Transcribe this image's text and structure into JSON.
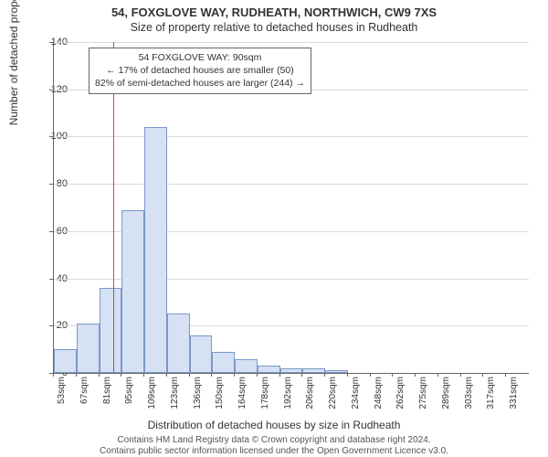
{
  "titles": {
    "line1": "54, FOXGLOVE WAY, RUDHEATH, NORTHWICH, CW9 7XS",
    "line2": "Size of property relative to detached houses in Rudheath"
  },
  "axes": {
    "ylabel": "Number of detached properties",
    "xlabel": "Distribution of detached houses by size in Rudheath",
    "ylim": [
      0,
      140
    ],
    "ytick_step": 20,
    "yticks": [
      0,
      20,
      40,
      60,
      80,
      100,
      120,
      140
    ],
    "grid_color": "#d9d9d9",
    "axis_color": "#666666",
    "tick_fontsize": 11,
    "label_fontsize": 12
  },
  "histogram": {
    "type": "histogram",
    "bar_fill": "#d6e1f4",
    "bar_stroke": "#7a98c9",
    "background_color": "#ffffff",
    "categories": [
      "53sqm",
      "67sqm",
      "81sqm",
      "95sqm",
      "109sqm",
      "123sqm",
      "136sqm",
      "150sqm",
      "164sqm",
      "178sqm",
      "192sqm",
      "206sqm",
      "220sqm",
      "234sqm",
      "248sqm",
      "262sqm",
      "275sqm",
      "289sqm",
      "303sqm",
      "317sqm",
      "331sqm"
    ],
    "values": [
      10,
      21,
      36,
      69,
      104,
      25,
      16,
      9,
      6,
      3,
      2,
      2,
      1,
      0,
      0,
      0,
      0,
      0,
      0,
      0,
      0
    ]
  },
  "reference_line": {
    "position_sqm": 90,
    "color": "#d64545"
  },
  "annotation": {
    "line1": "54 FOXGLOVE WAY: 90sqm",
    "line2": "← 17% of detached houses are smaller (50)",
    "line3": "82% of semi-detached houses are larger (244) →",
    "border_color": "#666666",
    "background_color": "#ffffff",
    "fontsize": 10.5
  },
  "footer": {
    "line1": "Contains HM Land Registry data © Crown copyright and database right 2024.",
    "line2": "Contains public sector information licensed under the Open Government Licence v3.0."
  }
}
